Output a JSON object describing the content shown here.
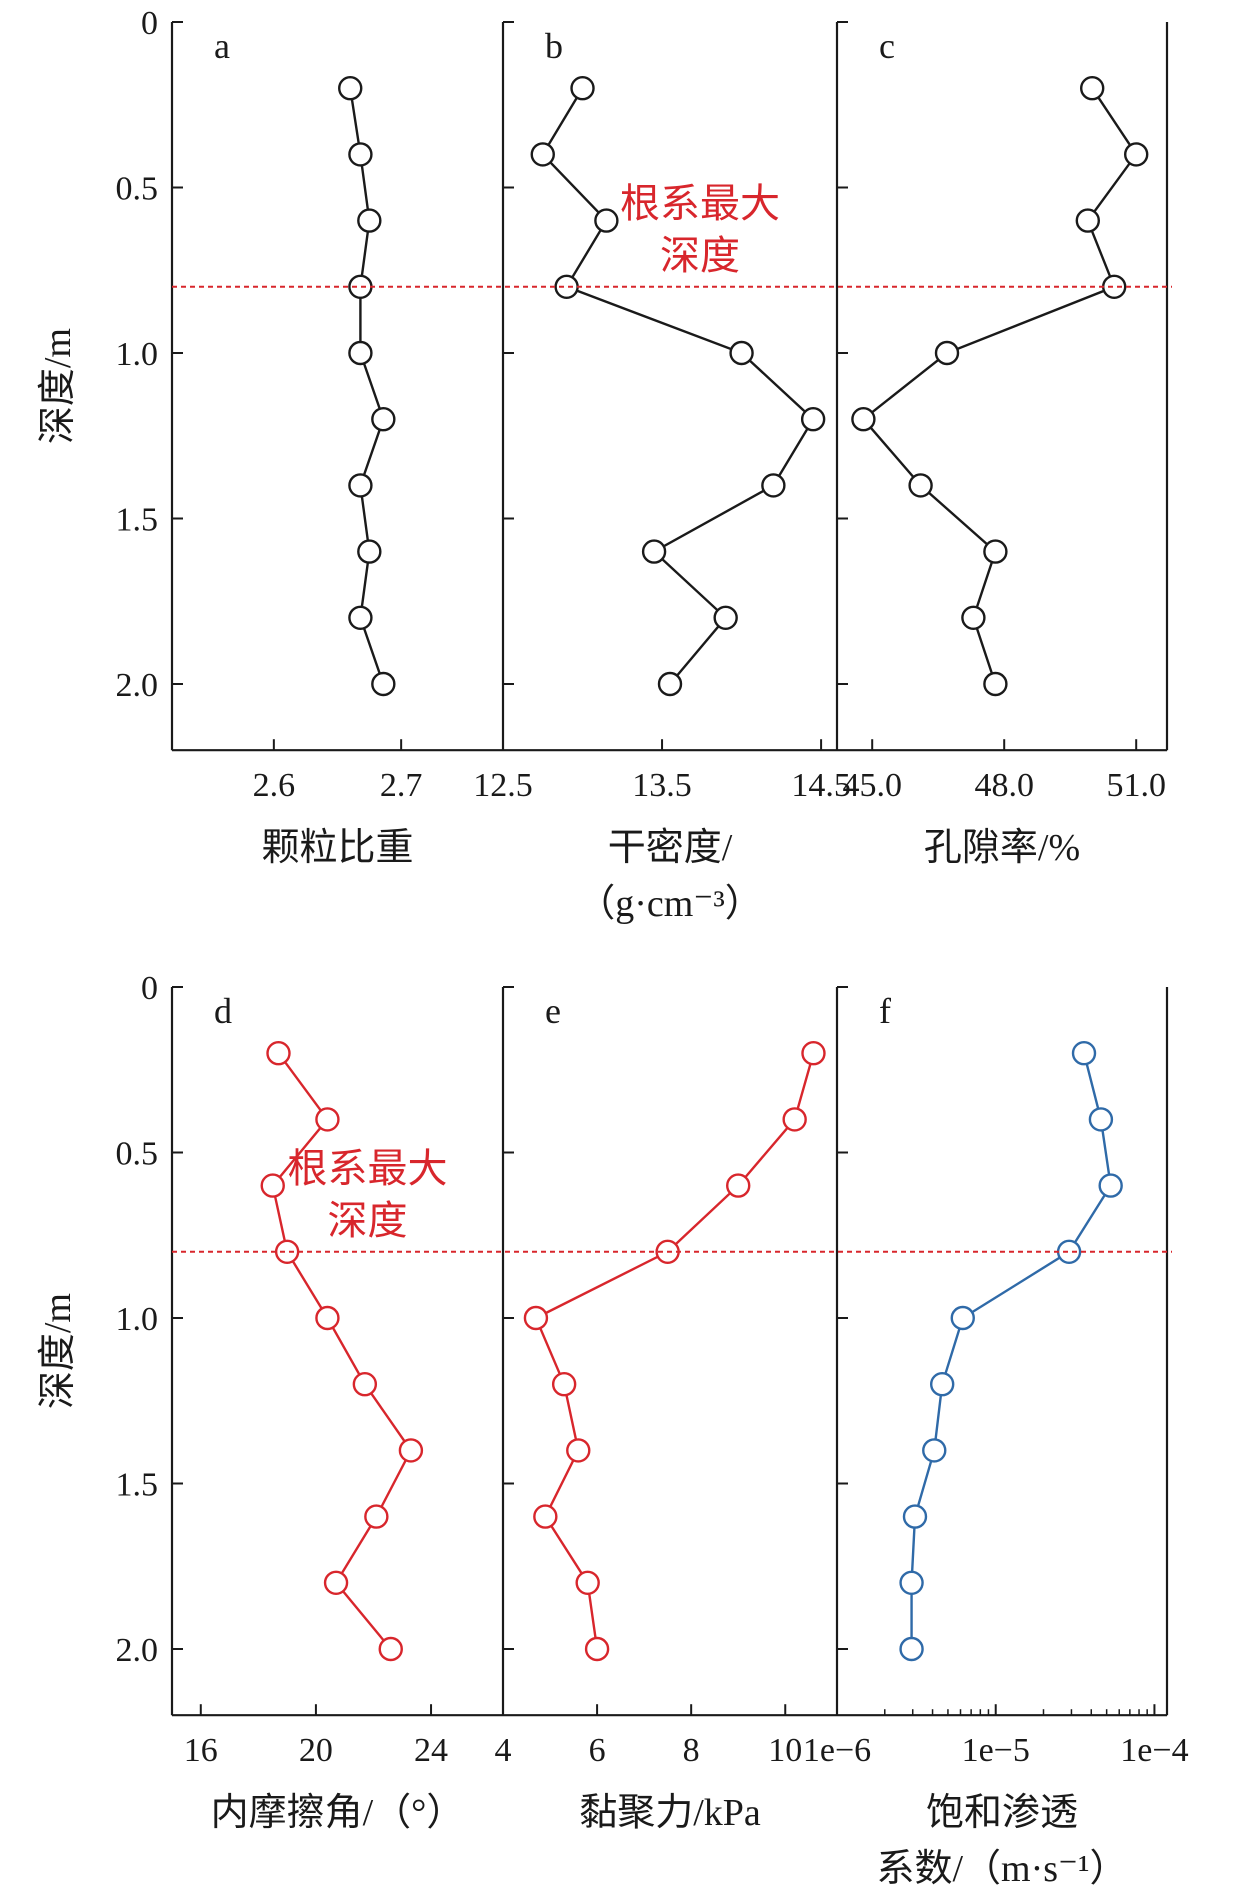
{
  "depth_ticks": [
    "0",
    "0.5",
    "1.0",
    "1.5",
    "2.0"
  ],
  "colors": {
    "black": "#1a1a1a",
    "red": "#d8262c",
    "blue": "#2f6aa8",
    "root_line": "#d8262c"
  },
  "rows": [
    {
      "ylabel": "深度/m",
      "annotation": [
        "根系最大",
        "深度"
      ],
      "annotation_panel": 1
    },
    {
      "ylabel": "深度/m",
      "annotation": [
        "根系最大",
        "深度"
      ],
      "annotation_panel": 0
    }
  ],
  "chart_data": [
    {
      "type": "line",
      "panel": "a",
      "orientation": "vertical",
      "xlabel": [
        "颗粒比重"
      ],
      "xlim": [
        2.52,
        2.78
      ],
      "xticks": [
        2.6,
        2.7
      ],
      "xtick_labels": [
        "2.6",
        "2.7"
      ],
      "ylim": [
        0,
        2.2
      ],
      "root_depth": 0.8,
      "color": "black",
      "xscale": "linear",
      "series": [
        {
          "depth": [
            0.2,
            0.4,
            0.6,
            0.8,
            1.0,
            1.2,
            1.4,
            1.6,
            1.8,
            2.0
          ],
          "values": [
            2.66,
            2.668,
            2.675,
            2.668,
            2.668,
            2.686,
            2.668,
            2.675,
            2.668,
            2.686
          ]
        }
      ]
    },
    {
      "type": "line",
      "panel": "b",
      "orientation": "vertical",
      "xlabel": [
        "干密度/",
        "（g·cm⁻³）"
      ],
      "xlim": [
        12.5,
        14.6
      ],
      "xticks": [
        12.5,
        13.5,
        14.5
      ],
      "xtick_labels": [
        "12.5",
        "13.5",
        "14.5"
      ],
      "ylim": [
        0,
        2.2
      ],
      "root_depth": 0.8,
      "color": "black",
      "xscale": "linear",
      "series": [
        {
          "depth": [
            0.2,
            0.4,
            0.6,
            0.8,
            1.0,
            1.2,
            1.4,
            1.6,
            1.8,
            2.0
          ],
          "values": [
            13.0,
            12.75,
            13.15,
            12.9,
            14.0,
            14.45,
            14.2,
            13.45,
            13.9,
            13.55
          ]
        }
      ]
    },
    {
      "type": "line",
      "panel": "c",
      "orientation": "vertical",
      "xlabel": [
        "孔隙率/%"
      ],
      "xlim": [
        44.2,
        51.7
      ],
      "xticks": [
        45.0,
        48.0,
        51.0
      ],
      "xtick_labels": [
        "45.0",
        "48.0",
        "51.0"
      ],
      "ylim": [
        0,
        2.2
      ],
      "root_depth": 0.8,
      "color": "black",
      "xscale": "linear",
      "series": [
        {
          "depth": [
            0.2,
            0.4,
            0.6,
            0.8,
            1.0,
            1.2,
            1.4,
            1.6,
            1.8,
            2.0
          ],
          "values": [
            50.0,
            51.0,
            49.9,
            50.5,
            46.7,
            44.8,
            46.1,
            47.8,
            47.3,
            47.8
          ]
        }
      ]
    },
    {
      "type": "line",
      "panel": "d",
      "orientation": "vertical",
      "xlabel": [
        "内摩擦角/（°）"
      ],
      "xlim": [
        15.0,
        26.5
      ],
      "xticks": [
        16,
        20,
        24
      ],
      "xtick_labels": [
        "16",
        "20",
        "24"
      ],
      "ylim": [
        0,
        2.2
      ],
      "root_depth": 0.8,
      "color": "red",
      "xscale": "linear",
      "series": [
        {
          "depth": [
            0.2,
            0.4,
            0.6,
            0.8,
            1.0,
            1.2,
            1.4,
            1.6,
            1.8,
            2.0
          ],
          "values": [
            18.7,
            20.4,
            18.5,
            19.0,
            20.4,
            21.7,
            23.3,
            22.1,
            20.7,
            22.6
          ]
        }
      ]
    },
    {
      "type": "line",
      "panel": "e",
      "orientation": "vertical",
      "xlabel": [
        "黏聚力/kPa"
      ],
      "xlim": [
        4.0,
        11.1
      ],
      "xticks": [
        4,
        6,
        8,
        10
      ],
      "xtick_labels": [
        "4",
        "6",
        "8",
        "10"
      ],
      "ylim": [
        0,
        2.2
      ],
      "root_depth": 0.8,
      "color": "red",
      "xscale": "linear",
      "series": [
        {
          "depth": [
            0.2,
            0.4,
            0.6,
            0.8,
            1.0,
            1.2,
            1.4,
            1.6,
            1.8,
            2.0
          ],
          "values": [
            10.6,
            10.2,
            9.0,
            7.5,
            4.7,
            5.3,
            5.6,
            4.9,
            5.8,
            6.0
          ]
        }
      ]
    },
    {
      "type": "line",
      "panel": "f",
      "orientation": "vertical",
      "xlabel": [
        "饱和渗透",
        "系数/（m·s⁻¹）"
      ],
      "xlim": [
        1e-06,
        0.00012
      ],
      "xticks": [
        1e-06,
        1e-05,
        0.0001
      ],
      "xtick_labels": [
        "1e−6",
        "1e−5",
        "1e−4"
      ],
      "ylim": [
        0,
        2.2
      ],
      "root_depth": 0.8,
      "color": "blue",
      "xscale": "log",
      "series": [
        {
          "depth": [
            0.2,
            0.4,
            0.6,
            0.8,
            1.0,
            1.2,
            1.4,
            1.6,
            1.8,
            2.0
          ],
          "values": [
            3.6e-05,
            4.6e-05,
            5.3e-05,
            2.9e-05,
            6.2e-06,
            4.6e-06,
            4.1e-06,
            3.1e-06,
            2.95e-06,
            2.95e-06
          ]
        }
      ]
    }
  ]
}
